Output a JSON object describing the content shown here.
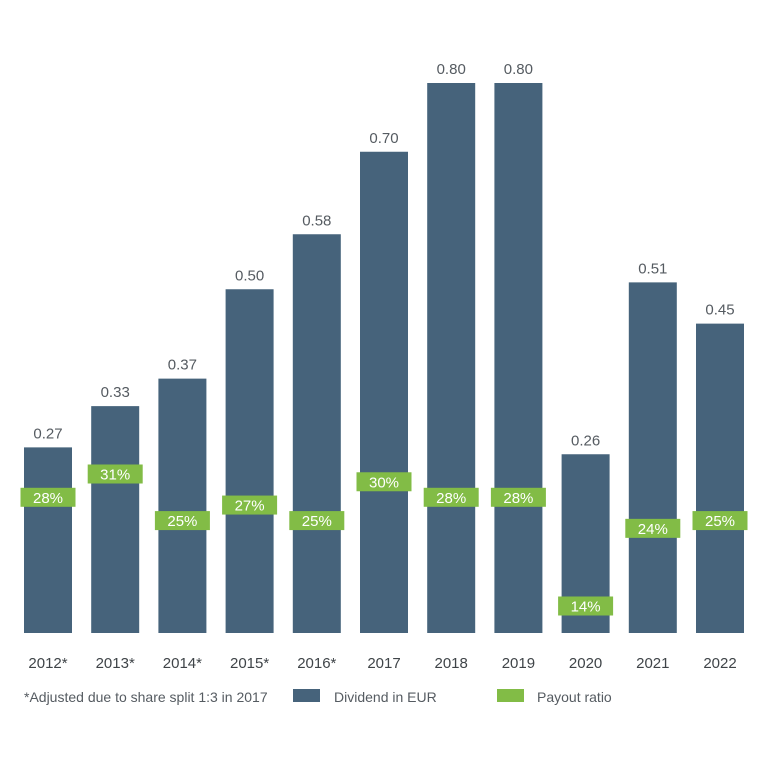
{
  "chart_data": {
    "type": "bar",
    "categories": [
      "2012*",
      "2013*",
      "2014*",
      "2015*",
      "2016*",
      "2017",
      "2018",
      "2019",
      "2020",
      "2021",
      "2022"
    ],
    "series": [
      {
        "name": "Dividend in EUR",
        "values": [
          0.27,
          0.33,
          0.37,
          0.5,
          0.58,
          0.7,
          0.8,
          0.8,
          0.26,
          0.51,
          0.45
        ],
        "labels": [
          "0.27",
          "0.33",
          "0.37",
          "0.50",
          "0.58",
          "0.70",
          "0.80",
          "0.80",
          "0.26",
          "0.51",
          "0.45"
        ],
        "color": "#46637b"
      },
      {
        "name": "Payout ratio",
        "values": [
          28,
          31,
          25,
          27,
          25,
          30,
          28,
          28,
          14,
          24,
          25
        ],
        "labels": [
          "28%",
          "31%",
          "25%",
          "27%",
          "25%",
          "30%",
          "28%",
          "28%",
          "14%",
          "24%",
          "25%"
        ],
        "color": "#82bc46"
      }
    ],
    "ylim": [
      0,
      0.8
    ],
    "grid": false,
    "legend_position": "bottom",
    "footnote": "*Adjusted due to share split 1:3 in 2017"
  }
}
